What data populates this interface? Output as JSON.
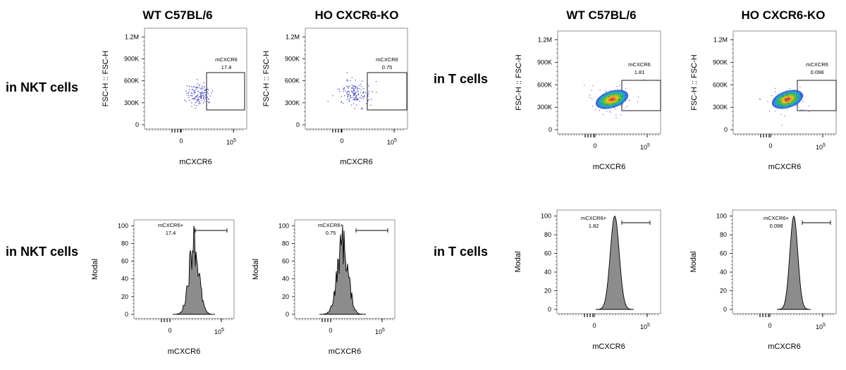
{
  "column_titles": [
    "WT C57BL/6",
    "HO CXCR6-KO",
    "WT C57BL/6",
    "HO CXCR6-KO"
  ],
  "row_labels": [
    "in NKT cells",
    "in NKT cells",
    "in T cells",
    "in T cells"
  ],
  "colors": {
    "axis": "#000000",
    "fill_gray": "#8c8c8c",
    "dots_blue": "#3a3ab8"
  },
  "chart_data": [
    {
      "type": "scatter",
      "population": "NKT",
      "sample": "WT C57BL/6",
      "xlabel": "mCXCR6",
      "ylabel": "FSC-H :: FSC-H",
      "yticks": [
        "0",
        "300K",
        "600K",
        "900K",
        "1.2M"
      ],
      "xticks": [
        "0",
        "10^5"
      ],
      "gate_name": "mCXCR6",
      "gate_value": "17.4",
      "density": "sparse"
    },
    {
      "type": "scatter",
      "population": "NKT",
      "sample": "HO CXCR6-KO",
      "xlabel": "mCXCR6",
      "ylabel": "FSC-H :: FSC-H",
      "yticks": [
        "0",
        "300K",
        "600K",
        "900K",
        "1.2M"
      ],
      "xticks": [
        "0",
        "10^5"
      ],
      "gate_name": "mCXCR6",
      "gate_value": "0.75",
      "density": "sparse"
    },
    {
      "type": "scatter",
      "population": "T",
      "sample": "WT C57BL/6",
      "xlabel": "mCXCR6",
      "ylabel": "FSC-H :: FSC-H",
      "yticks": [
        "0",
        "300K",
        "600K",
        "900K",
        "1.2M"
      ],
      "xticks": [
        "0",
        "10^5"
      ],
      "gate_name": "mCXCR6",
      "gate_value": "1.81",
      "density": "dense"
    },
    {
      "type": "scatter",
      "population": "T",
      "sample": "HO CXCR6-KO",
      "xlabel": "mCXCR6",
      "ylabel": "FSC-H :: FSC-H",
      "yticks": [
        "0",
        "300K",
        "600K",
        "900K",
        "1.2M"
      ],
      "xticks": [
        "0",
        "10^5"
      ],
      "gate_name": "mCXCR6",
      "gate_value": "0.098",
      "density": "dense"
    },
    {
      "type": "area",
      "population": "NKT",
      "sample": "WT C57BL/6",
      "xlabel": "mCXCR6",
      "ylabel": "Modal",
      "yticks": [
        "0",
        "20",
        "40",
        "60",
        "80",
        "100"
      ],
      "xticks": [
        "0",
        "10^5"
      ],
      "gate_name": "mCXCR6+",
      "gate_value": "17.4",
      "shape": "jagged"
    },
    {
      "type": "area",
      "population": "NKT",
      "sample": "HO CXCR6-KO",
      "xlabel": "mCXCR6",
      "ylabel": "Modal",
      "yticks": [
        "0",
        "20",
        "40",
        "60",
        "80",
        "100"
      ],
      "xticks": [
        "0",
        "10^5"
      ],
      "gate_name": "mCXCR6+",
      "gate_value": "0.75",
      "shape": "jagged"
    },
    {
      "type": "area",
      "population": "T",
      "sample": "WT C57BL/6",
      "xlabel": "mCXCR6",
      "ylabel": "Modal",
      "yticks": [
        "0",
        "20",
        "40",
        "60",
        "80",
        "100"
      ],
      "xticks": [
        "0",
        "10^5"
      ],
      "gate_name": "mCXCR6+",
      "gate_value": "1.82",
      "shape": "smooth"
    },
    {
      "type": "area",
      "population": "T",
      "sample": "HO CXCR6-KO",
      "xlabel": "mCXCR6",
      "ylabel": "Modal",
      "yticks": [
        "0",
        "20",
        "40",
        "60",
        "80",
        "100"
      ],
      "xticks": [
        "0",
        "10^5"
      ],
      "gate_name": "mCXCR6+",
      "gate_value": "0.098",
      "shape": "smooth"
    }
  ]
}
